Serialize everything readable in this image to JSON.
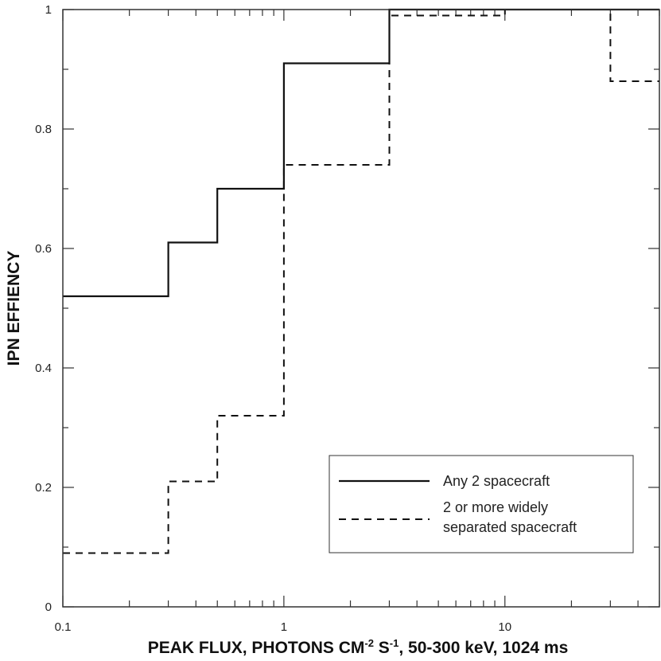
{
  "chart_data": {
    "type": "line",
    "subtype": "step",
    "xscale": "log",
    "xlim": [
      0.1,
      50
    ],
    "ylim": [
      0,
      1
    ],
    "xlabel_parts": {
      "a": "PEAK FLUX, PHOTONS CM",
      "sup1": "-2",
      "b": " S",
      "sup2": "-1",
      "c": ", 50-300 keV, 1024 ms"
    },
    "ylabel": "IPN EFFIENCY",
    "x_tick_labels": [
      {
        "value": 0.1,
        "label": "0.1"
      },
      {
        "value": 1,
        "label": "1"
      },
      {
        "value": 10,
        "label": "10"
      }
    ],
    "y_tick_labels": [
      {
        "value": 0,
        "label": "0"
      },
      {
        "value": 0.2,
        "label": "0.2"
      },
      {
        "value": 0.4,
        "label": "0.4"
      },
      {
        "value": 0.6,
        "label": "0.6"
      },
      {
        "value": 0.8,
        "label": "0.8"
      },
      {
        "value": 1,
        "label": "1"
      }
    ],
    "grid": false,
    "legend_position": "bottom-right",
    "series": [
      {
        "name": "Any 2 spacecraft",
        "line_style": "solid",
        "bins": [
          {
            "x0": 0.1,
            "x1": 0.3,
            "y": 0.52
          },
          {
            "x0": 0.3,
            "x1": 0.5,
            "y": 0.61
          },
          {
            "x0": 0.5,
            "x1": 1,
            "y": 0.7
          },
          {
            "x0": 1,
            "x1": 3,
            "y": 0.91
          },
          {
            "x0": 3,
            "x1": 50,
            "y": 1.0
          }
        ]
      },
      {
        "name_lines": [
          "2 or more widely",
          "separated spacecraft"
        ],
        "line_style": "dashed",
        "bins": [
          {
            "x0": 0.1,
            "x1": 0.3,
            "y": 0.09
          },
          {
            "x0": 0.3,
            "x1": 0.5,
            "y": 0.21
          },
          {
            "x0": 0.5,
            "x1": 1,
            "y": 0.32
          },
          {
            "x0": 1,
            "x1": 3,
            "y": 0.74
          },
          {
            "x0": 3,
            "x1": 10,
            "y": 0.99
          },
          {
            "x0": 10,
            "x1": 30,
            "y": 1.0
          },
          {
            "x0": 30,
            "x1": 50,
            "y": 0.88
          }
        ]
      }
    ]
  }
}
